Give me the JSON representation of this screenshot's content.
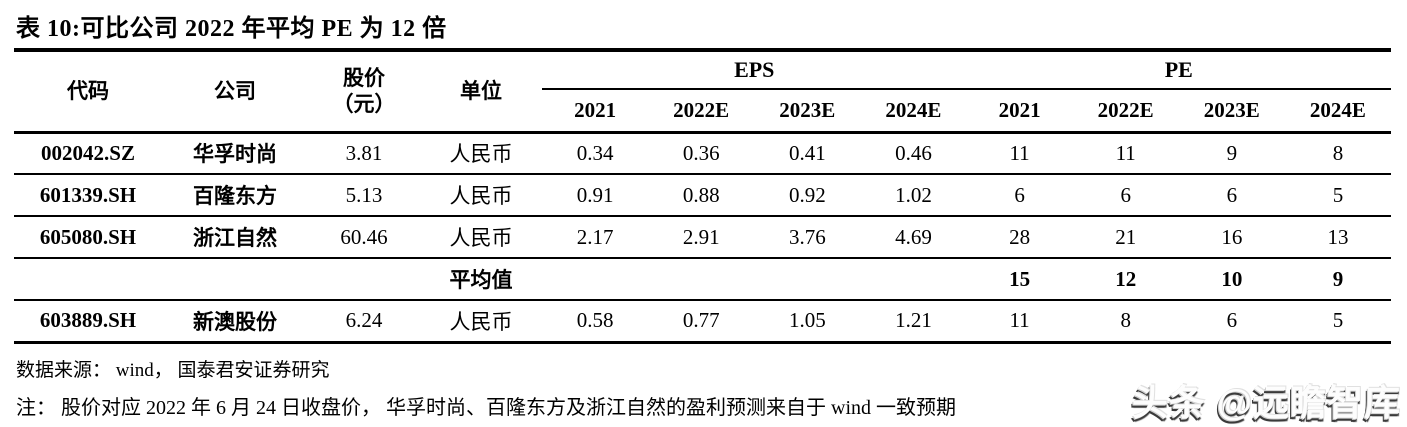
{
  "title": {
    "text": "表 10:可比公司 2022 年平均 PE 为 12 倍"
  },
  "table": {
    "headers": {
      "code": "代码",
      "company": "公司",
      "price_line1": "股价",
      "price_line2": "（元）",
      "unit": "单位",
      "eps_group": "EPS",
      "pe_group": "PE"
    },
    "years": [
      "2021",
      "2022E",
      "2023E",
      "2024E"
    ],
    "rows": [
      {
        "code": "002042.SZ",
        "company": "华孚时尚",
        "price": "3.81",
        "unit": "人民币",
        "eps": [
          "0.34",
          "0.36",
          "0.41",
          "0.46"
        ],
        "pe": [
          "11",
          "11",
          "9",
          "8"
        ]
      },
      {
        "code": "601339.SH",
        "company": "百隆东方",
        "price": "5.13",
        "unit": "人民币",
        "eps": [
          "0.91",
          "0.88",
          "0.92",
          "1.02"
        ],
        "pe": [
          "6",
          "6",
          "6",
          "5"
        ]
      },
      {
        "code": "605080.SH",
        "company": "浙江自然",
        "price": "60.46",
        "unit": "人民币",
        "eps": [
          "2.17",
          "2.91",
          "3.76",
          "4.69"
        ],
        "pe": [
          "28",
          "21",
          "16",
          "13"
        ]
      },
      {
        "code": "",
        "company": "",
        "price": "",
        "unit": "平均值",
        "eps": [
          "",
          "",
          "",
          ""
        ],
        "pe": [
          "15",
          "12",
          "10",
          "9"
        ]
      },
      {
        "code": "603889.SH",
        "company": "新澳股份",
        "price": "6.24",
        "unit": "人民币",
        "eps": [
          "0.58",
          "0.77",
          "1.05",
          "1.21"
        ],
        "pe": [
          "11",
          "8",
          "6",
          "5"
        ]
      }
    ]
  },
  "footer": {
    "source": "数据来源： wind， 国泰君安证券研究",
    "note": "注： 股价对应 2022 年 6 月 24 日收盘价， 华孚时尚、百隆东方及浙江自然的盈利预测来自于 wind 一致预期"
  },
  "watermark": {
    "text": "头条 @远瞻智库"
  }
}
